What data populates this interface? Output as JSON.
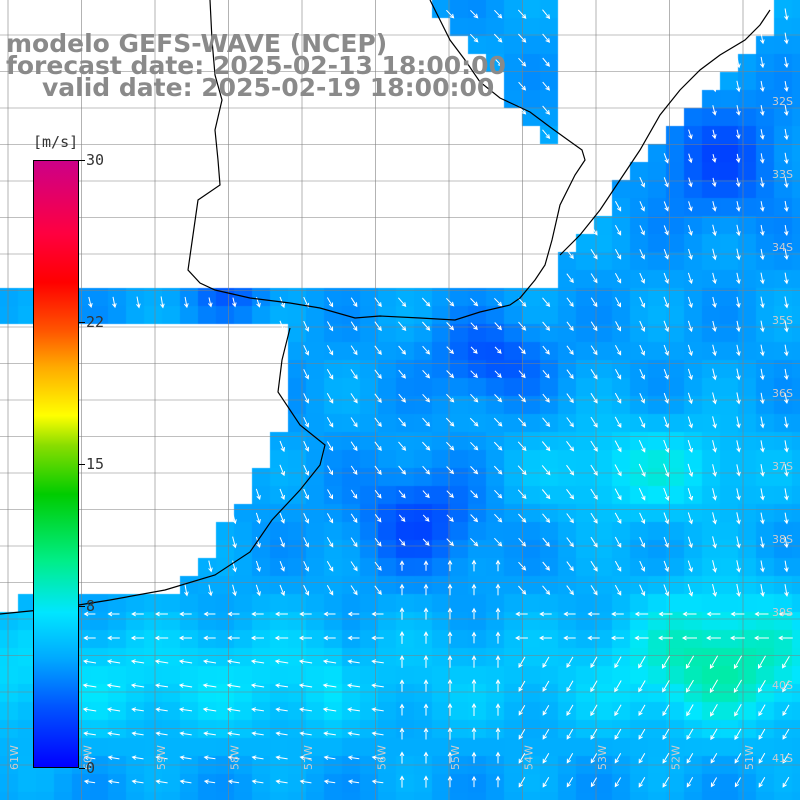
{
  "title": {
    "model": "modelo GEFS-WAVE (NCEP)",
    "forecast": "forecast date: 2025-02-13 18:00:00",
    "valid": "valid date: 2025-02-19 18:00:00"
  },
  "colorbar": {
    "unit": "[m/s]",
    "ticks": [
      "30",
      "22",
      "15",
      "8",
      "0"
    ],
    "min": 0,
    "max": 30
  },
  "lat_labels": [
    "32S",
    "33S",
    "34S",
    "35S",
    "36S",
    "37S",
    "38S",
    "39S",
    "40S",
    "41S"
  ],
  "lon_labels": [
    "61W",
    "60W",
    "59W",
    "58W",
    "57W",
    "56W",
    "55W",
    "54W",
    "53W",
    "52W",
    "51W"
  ],
  "colors": {
    "land": "#ffffff",
    "coast": "#000000",
    "grid": "#808080",
    "arrow": "#ffffff",
    "title": "#8a8a8a"
  }
}
